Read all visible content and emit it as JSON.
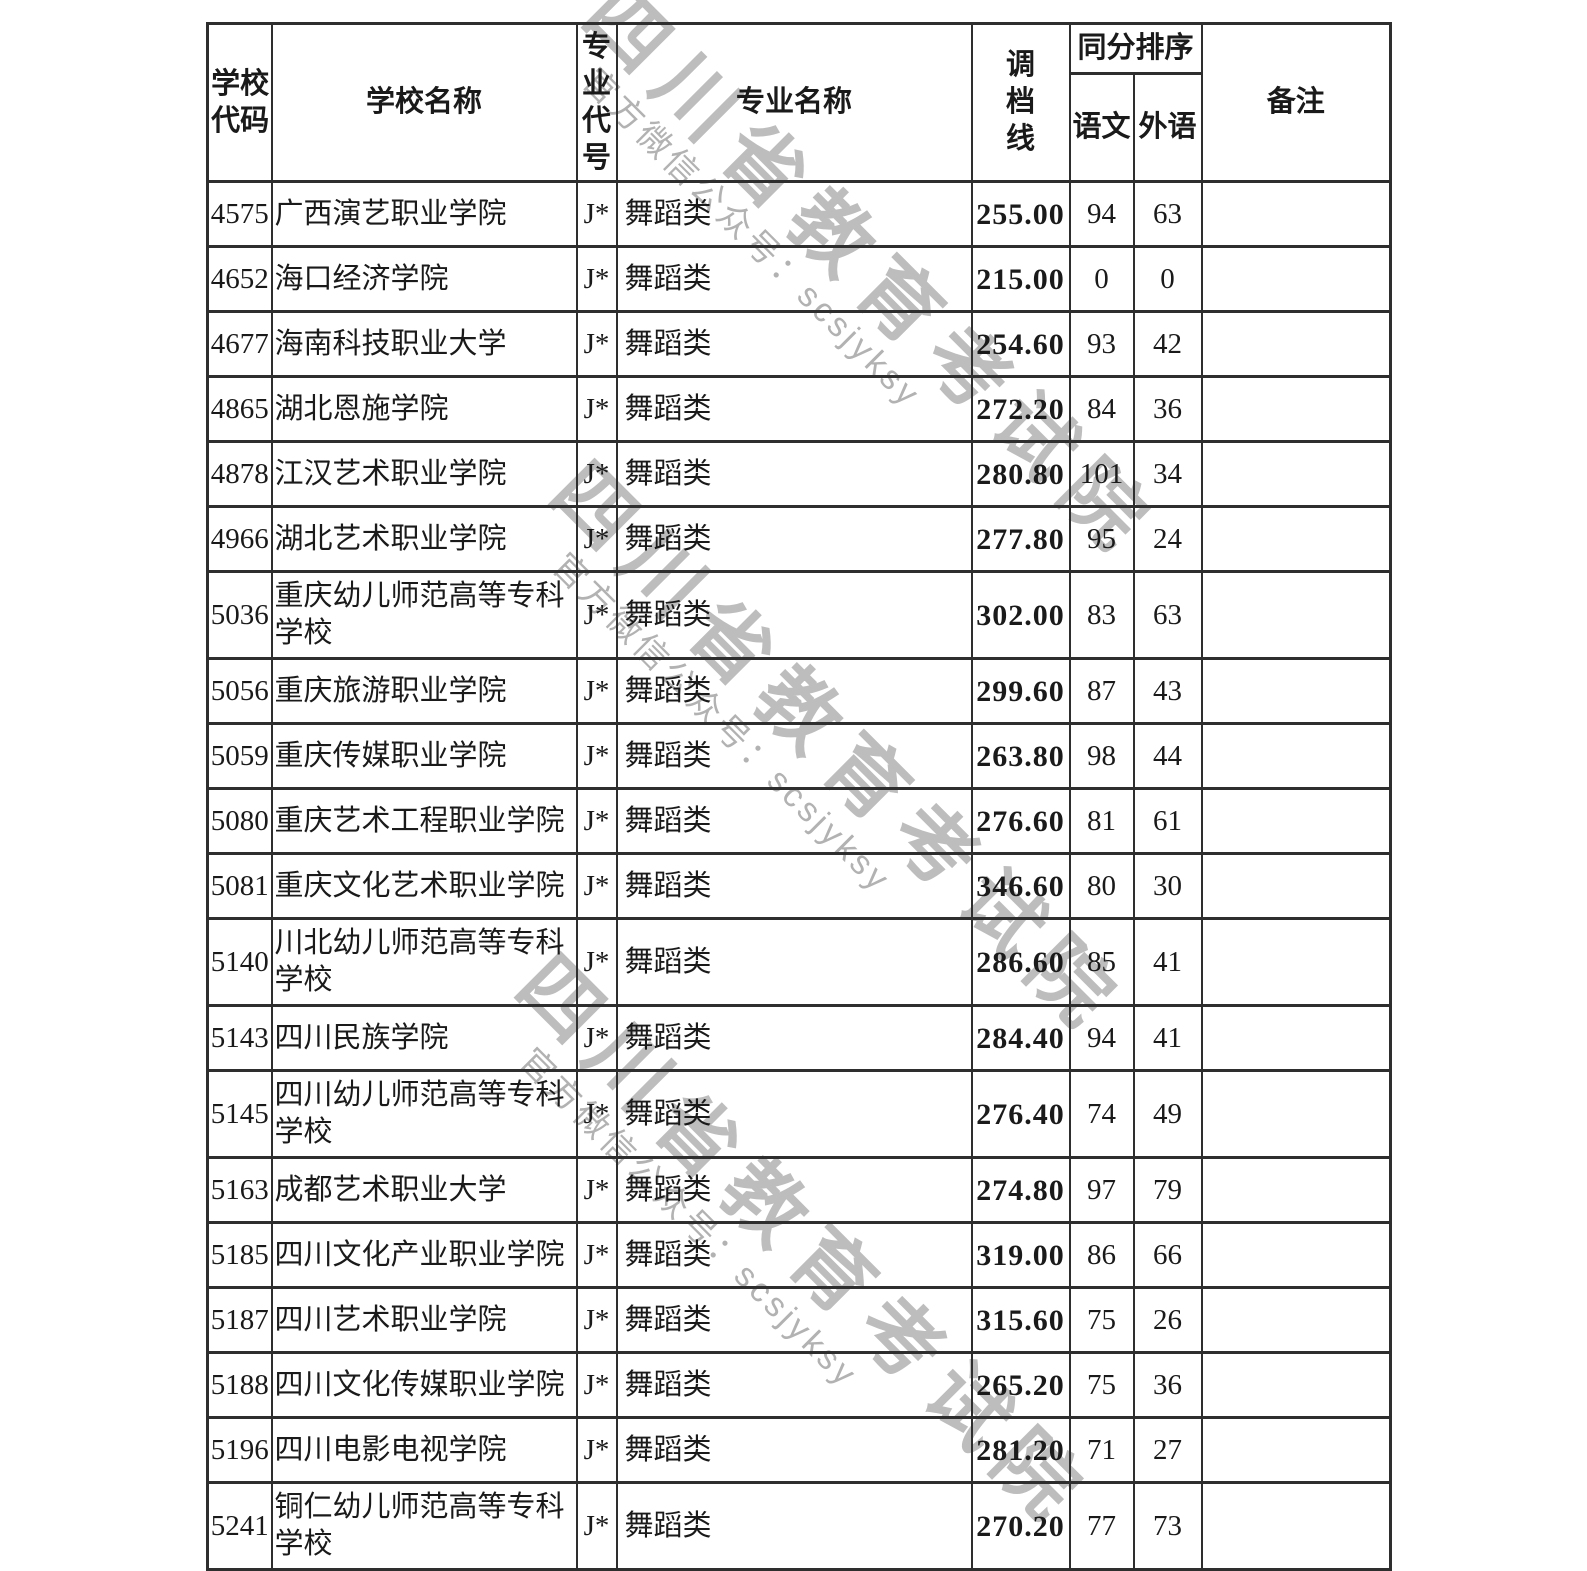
{
  "watermark": {
    "big_text": "四川省教育考试院",
    "small_text": "官方微信公众号：scsjyksy",
    "big_color": "#bdbdbd",
    "small_color": "#b2b2b2"
  },
  "table": {
    "header": {
      "school_code": "学校代码",
      "school_name": "学校名称",
      "major_code": "专业代号",
      "major_name": "专业名称",
      "adjust_line": "调档线",
      "same_score_group": "同分排序",
      "chinese": "语文",
      "foreign_lang": "外语",
      "remark": "备注"
    },
    "rows": [
      {
        "code": "4575",
        "school": "广西演艺职业学院",
        "major_code": "J*",
        "major": "舞蹈类",
        "line": "255.00",
        "chinese": "94",
        "foreign": "63",
        "remark": ""
      },
      {
        "code": "4652",
        "school": "海口经济学院",
        "major_code": "J*",
        "major": "舞蹈类",
        "line": "215.00",
        "chinese": "0",
        "foreign": "0",
        "remark": ""
      },
      {
        "code": "4677",
        "school": "海南科技职业大学",
        "major_code": "J*",
        "major": "舞蹈类",
        "line": "254.60",
        "chinese": "93",
        "foreign": "42",
        "remark": ""
      },
      {
        "code": "4865",
        "school": "湖北恩施学院",
        "major_code": "J*",
        "major": "舞蹈类",
        "line": "272.20",
        "chinese": "84",
        "foreign": "36",
        "remark": ""
      },
      {
        "code": "4878",
        "school": "江汉艺术职业学院",
        "major_code": "J*",
        "major": "舞蹈类",
        "line": "280.80",
        "chinese": "101",
        "foreign": "34",
        "remark": ""
      },
      {
        "code": "4966",
        "school": "湖北艺术职业学院",
        "major_code": "J*",
        "major": "舞蹈类",
        "line": "277.80",
        "chinese": "95",
        "foreign": "24",
        "remark": ""
      },
      {
        "code": "5036",
        "school": "重庆幼儿师范高等专科学校",
        "major_code": "J*",
        "major": "舞蹈类",
        "line": "302.00",
        "chinese": "83",
        "foreign": "63",
        "remark": ""
      },
      {
        "code": "5056",
        "school": "重庆旅游职业学院",
        "major_code": "J*",
        "major": "舞蹈类",
        "line": "299.60",
        "chinese": "87",
        "foreign": "43",
        "remark": ""
      },
      {
        "code": "5059",
        "school": "重庆传媒职业学院",
        "major_code": "J*",
        "major": "舞蹈类",
        "line": "263.80",
        "chinese": "98",
        "foreign": "44",
        "remark": ""
      },
      {
        "code": "5080",
        "school": "重庆艺术工程职业学院",
        "major_code": "J*",
        "major": "舞蹈类",
        "line": "276.60",
        "chinese": "81",
        "foreign": "61",
        "remark": ""
      },
      {
        "code": "5081",
        "school": "重庆文化艺术职业学院",
        "major_code": "J*",
        "major": "舞蹈类",
        "line": "346.60",
        "chinese": "80",
        "foreign": "30",
        "remark": ""
      },
      {
        "code": "5140",
        "school": "川北幼儿师范高等专科学校",
        "major_code": "J*",
        "major": "舞蹈类",
        "line": "286.60",
        "chinese": "85",
        "foreign": "41",
        "remark": ""
      },
      {
        "code": "5143",
        "school": "四川民族学院",
        "major_code": "J*",
        "major": "舞蹈类",
        "line": "284.40",
        "chinese": "94",
        "foreign": "41",
        "remark": ""
      },
      {
        "code": "5145",
        "school": "四川幼儿师范高等专科学校",
        "major_code": "J*",
        "major": "舞蹈类",
        "line": "276.40",
        "chinese": "74",
        "foreign": "49",
        "remark": ""
      },
      {
        "code": "5163",
        "school": "成都艺术职业大学",
        "major_code": "J*",
        "major": "舞蹈类",
        "line": "274.80",
        "chinese": "97",
        "foreign": "79",
        "remark": ""
      },
      {
        "code": "5185",
        "school": "四川文化产业职业学院",
        "major_code": "J*",
        "major": "舞蹈类",
        "line": "319.00",
        "chinese": "86",
        "foreign": "66",
        "remark": ""
      },
      {
        "code": "5187",
        "school": "四川艺术职业学院",
        "major_code": "J*",
        "major": "舞蹈类",
        "line": "315.60",
        "chinese": "75",
        "foreign": "26",
        "remark": ""
      },
      {
        "code": "5188",
        "school": "四川文化传媒职业学院",
        "major_code": "J*",
        "major": "舞蹈类",
        "line": "265.20",
        "chinese": "75",
        "foreign": "36",
        "remark": ""
      },
      {
        "code": "5196",
        "school": "四川电影电视学院",
        "major_code": "J*",
        "major": "舞蹈类",
        "line": "281.20",
        "chinese": "71",
        "foreign": "27",
        "remark": ""
      },
      {
        "code": "5241",
        "school": "铜仁幼儿师范高等专科学校",
        "major_code": "J*",
        "major": "舞蹈类",
        "line": "270.20",
        "chinese": "77",
        "foreign": "73",
        "remark": ""
      }
    ]
  }
}
